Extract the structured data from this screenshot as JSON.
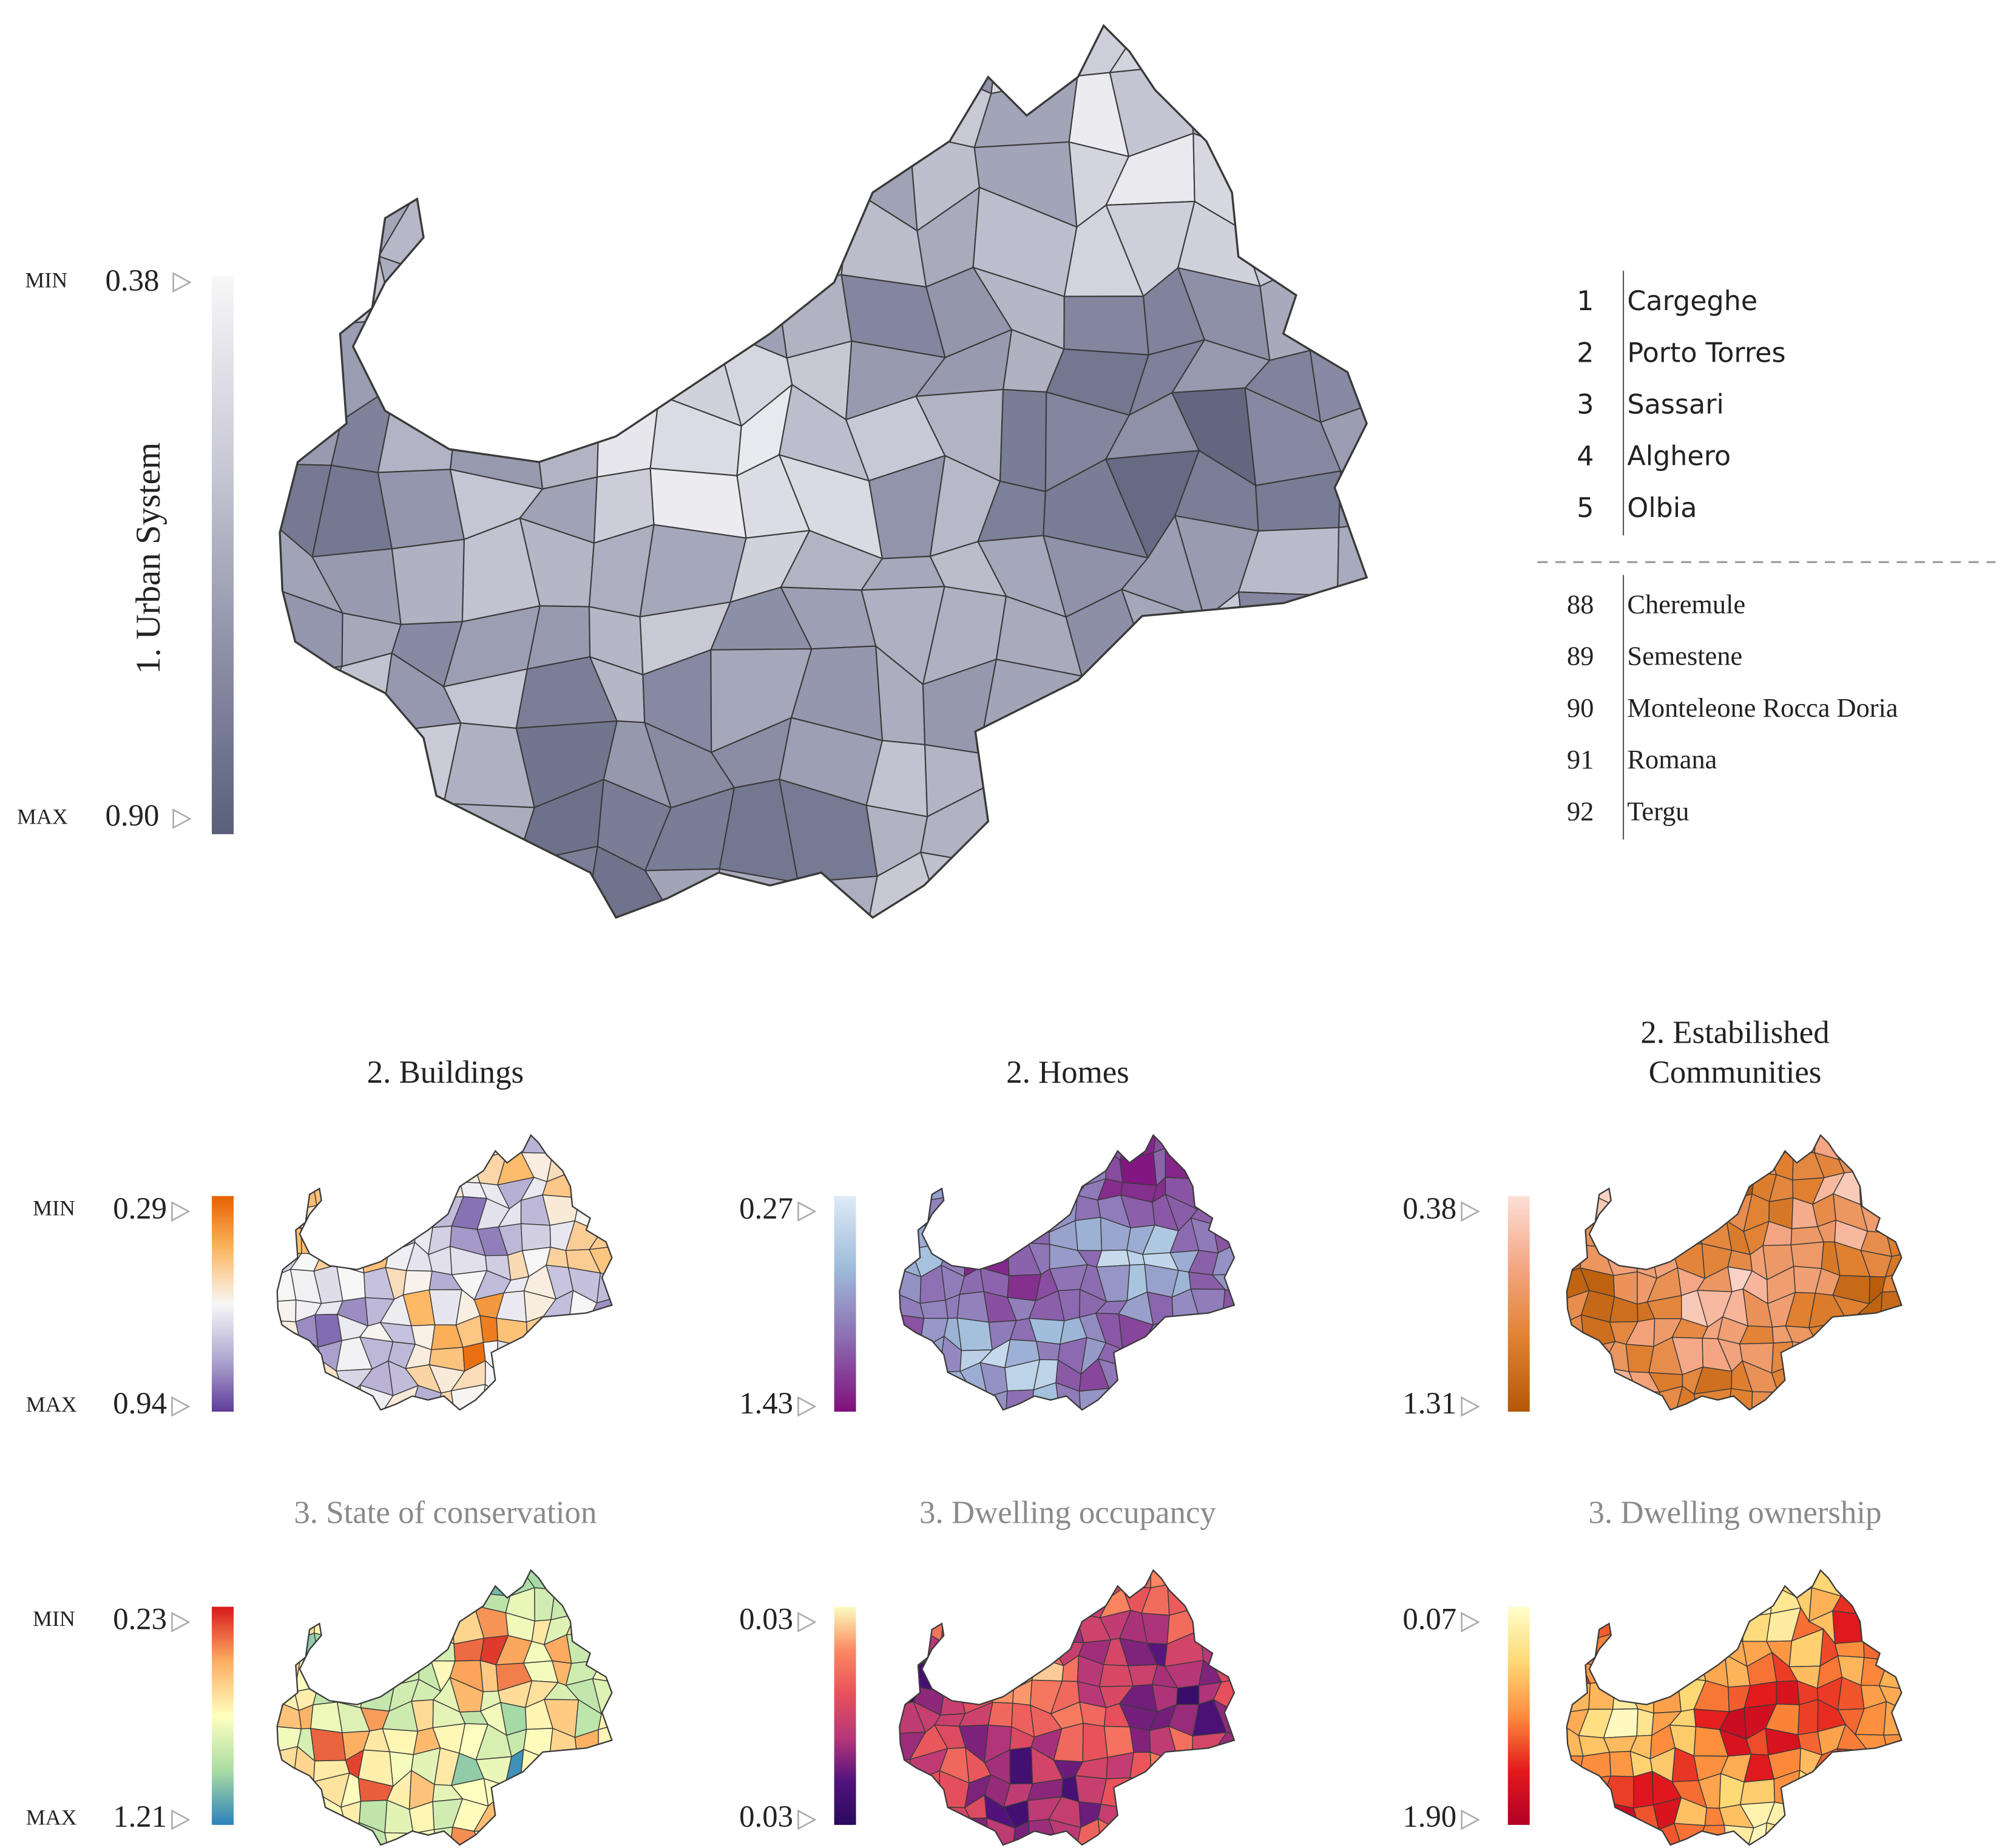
{
  "main": {
    "title": "1. Urban System",
    "min_label": "MIN",
    "max_label": "MAX",
    "min_value": "0.38",
    "max_value": "0.90"
  },
  "ranking": {
    "top": [
      {
        "rank": "1",
        "name": "Cargeghe"
      },
      {
        "rank": "2",
        "name": "Porto Torres"
      },
      {
        "rank": "3",
        "name": "Sassari"
      },
      {
        "rank": "4",
        "name": "Alghero"
      },
      {
        "rank": "5",
        "name": "Olbia"
      }
    ],
    "bottom": [
      {
        "rank": "88",
        "name": "Cheremule"
      },
      {
        "rank": "89",
        "name": "Semestene"
      },
      {
        "rank": "90",
        "name": "Monteleone Rocca Doria"
      },
      {
        "rank": "91",
        "name": "Romana"
      },
      {
        "rank": "92",
        "name": "Tergu"
      }
    ]
  },
  "panels": [
    {
      "title": [
        "2. Buildings"
      ],
      "min_label": "MIN",
      "max_label": "MAX",
      "min_value": "0.29",
      "max_value": "0.94"
    },
    {
      "title": [
        "2. Homes"
      ],
      "min_value": "0.27",
      "max_value": "1.43"
    },
    {
      "title": [
        "2. Estabilished",
        "Communities"
      ],
      "min_value": "0.38",
      "max_value": "1.31"
    },
    {
      "title": [
        "3. State of conservation"
      ],
      "min_label": "MIN",
      "max_label": "MAX",
      "min_value": "0.23",
      "max_value": "1.21"
    },
    {
      "title": [
        "3. Dwelling occupancy"
      ],
      "min_value": "0.03",
      "max_value": "0.03"
    },
    {
      "title": [
        "3. Dwelling ownership"
      ],
      "min_value": "0.07",
      "max_value": "1.90"
    }
  ]
}
